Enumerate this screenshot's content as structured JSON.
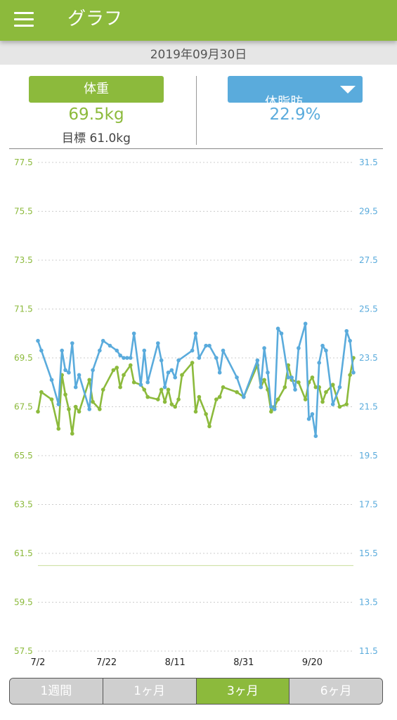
{
  "header": {
    "title": "グラフ",
    "menu_icon": "hamburger-menu-icon"
  },
  "date": "2019年09月30日",
  "weight": {
    "button_label": "体重",
    "value": "69.5kg",
    "goal": "目標 61.0kg",
    "color": "#8cba3c"
  },
  "body_fat": {
    "button_label": "体脂肪",
    "value": "22.9%",
    "color": "#5aabdc",
    "dropdown_icon": "triangle-down-icon"
  },
  "tabs": [
    {
      "label": "1週間",
      "active": false
    },
    {
      "label": "1ヶ月",
      "active": false
    },
    {
      "label": "3ヶ月",
      "active": true
    },
    {
      "label": "6ヶ月",
      "active": false
    }
  ],
  "chart_data": {
    "type": "line",
    "x_start": "7/1",
    "x_ticks": [
      "7/2",
      "7/22",
      "8/11",
      "8/31",
      "9/20"
    ],
    "y_left": {
      "ticks": [
        "77.5",
        "75.5",
        "73.5",
        "71.5",
        "69.5",
        "67.5",
        "65.5",
        "63.5",
        "61.5",
        "59.5",
        "57.5"
      ],
      "min": 57.5,
      "max": 77.5
    },
    "y_right": {
      "ticks": [
        "31.5",
        "29.5",
        "27.5",
        "25.5",
        "23.5",
        "21.5",
        "19.5",
        "17.5",
        "15.5",
        "13.5",
        "11.5"
      ],
      "min": 11.5,
      "max": 31.5
    },
    "goal_line": {
      "value": 61.0,
      "axis": "left"
    },
    "grid": true,
    "series": [
      {
        "axis": "left",
        "color": "#8cba3c",
        "points": [
          [
            1,
            67.3
          ],
          [
            2,
            68.1
          ],
          [
            5,
            67.8
          ],
          [
            7,
            66.6
          ],
          [
            8,
            68.8
          ],
          [
            9,
            68.0
          ],
          [
            10,
            67.4
          ],
          [
            11,
            66.4
          ],
          [
            12,
            67.5
          ],
          [
            13,
            67.3
          ],
          [
            16,
            68.6
          ],
          [
            17,
            67.7
          ],
          [
            19,
            67.4
          ],
          [
            20,
            68.2
          ],
          [
            23,
            69.0
          ],
          [
            24,
            69.1
          ],
          [
            25,
            68.3
          ],
          [
            26,
            68.8
          ],
          [
            28,
            69.2
          ],
          [
            29,
            68.5
          ],
          [
            31,
            68.4
          ],
          [
            32,
            68.2
          ],
          [
            33,
            67.9
          ],
          [
            36,
            67.8
          ],
          [
            37,
            68.2
          ],
          [
            38,
            67.7
          ],
          [
            39,
            68.2
          ],
          [
            40,
            67.6
          ],
          [
            41,
            67.5
          ],
          [
            42,
            67.8
          ],
          [
            43,
            68.8
          ],
          [
            46,
            69.3
          ],
          [
            47,
            67.3
          ],
          [
            48,
            67.9
          ],
          [
            50,
            67.2
          ],
          [
            51,
            66.7
          ],
          [
            53,
            67.8
          ],
          [
            54,
            67.9
          ],
          [
            55,
            68.3
          ],
          [
            59,
            68.1
          ],
          [
            61,
            67.9
          ],
          [
            65,
            69.2
          ],
          [
            66,
            68.3
          ],
          [
            67,
            68.6
          ],
          [
            68,
            68.2
          ],
          [
            69,
            67.3
          ],
          [
            70,
            67.5
          ],
          [
            71,
            67.8
          ],
          [
            73,
            68.3
          ],
          [
            74,
            69.2
          ],
          [
            75,
            68.6
          ],
          [
            77,
            68.5
          ],
          [
            79,
            67.8
          ],
          [
            80,
            68.5
          ],
          [
            81,
            68.7
          ],
          [
            82,
            68.3
          ],
          [
            83,
            68.3
          ],
          [
            84,
            67.7
          ],
          [
            85,
            68.1
          ],
          [
            87,
            68.4
          ],
          [
            89,
            67.5
          ],
          [
            91,
            67.6
          ],
          [
            92,
            68.8
          ],
          [
            93,
            69.5
          ]
        ]
      },
      {
        "axis": "right",
        "color": "#5aabdc",
        "points": [
          [
            1,
            24.2
          ],
          [
            2,
            23.8
          ],
          [
            5,
            22.6
          ],
          [
            7,
            21.6
          ],
          [
            8,
            23.8
          ],
          [
            9,
            23.0
          ],
          [
            10,
            22.9
          ],
          [
            11,
            24.1
          ],
          [
            12,
            22.3
          ],
          [
            13,
            22.8
          ],
          [
            16,
            21.4
          ],
          [
            17,
            23.0
          ],
          [
            19,
            23.8
          ],
          [
            20,
            24.2
          ],
          [
            22,
            24.0
          ],
          [
            24,
            23.8
          ],
          [
            25,
            23.6
          ],
          [
            26,
            23.5
          ],
          [
            27,
            23.5
          ],
          [
            28,
            23.5
          ],
          [
            29,
            24.5
          ],
          [
            31,
            22.4
          ],
          [
            32,
            23.8
          ],
          [
            33,
            22.5
          ],
          [
            36,
            24.1
          ],
          [
            37,
            23.4
          ],
          [
            38,
            22.3
          ],
          [
            39,
            22.9
          ],
          [
            40,
            23.0
          ],
          [
            41,
            22.7
          ],
          [
            42,
            23.4
          ],
          [
            46,
            23.8
          ],
          [
            47,
            24.5
          ],
          [
            48,
            23.5
          ],
          [
            50,
            24.0
          ],
          [
            51,
            24.0
          ],
          [
            53,
            23.5
          ],
          [
            54,
            22.9
          ],
          [
            55,
            23.8
          ],
          [
            59,
            22.7
          ],
          [
            61,
            21.9
          ],
          [
            65,
            23.4
          ],
          [
            66,
            22.3
          ],
          [
            67,
            23.9
          ],
          [
            68,
            22.9
          ],
          [
            69,
            21.5
          ],
          [
            70,
            21.4
          ],
          [
            71,
            24.7
          ],
          [
            72,
            24.5
          ],
          [
            74,
            22.7
          ],
          [
            75,
            22.7
          ],
          [
            76,
            22.2
          ],
          [
            77,
            23.9
          ],
          [
            79,
            24.9
          ],
          [
            80,
            21.0
          ],
          [
            81,
            21.2
          ],
          [
            82,
            20.3
          ],
          [
            83,
            23.3
          ],
          [
            84,
            24.0
          ],
          [
            85,
            23.8
          ],
          [
            87,
            21.6
          ],
          [
            89,
            22.3
          ],
          [
            91,
            24.6
          ],
          [
            92,
            24.2
          ],
          [
            93,
            22.9
          ]
        ]
      }
    ]
  }
}
